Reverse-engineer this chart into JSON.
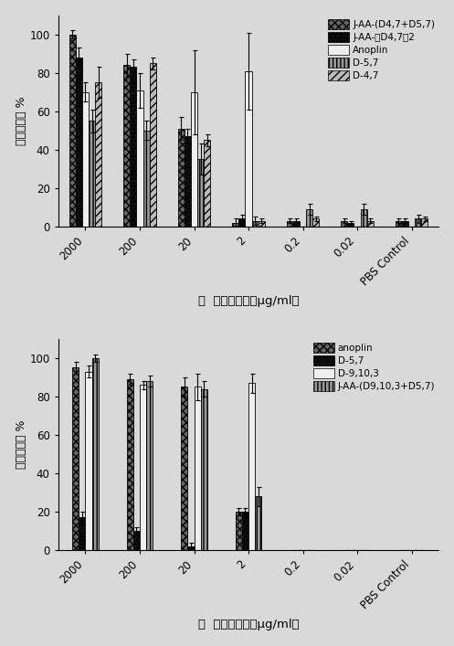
{
  "chart1": {
    "categories": [
      "2000",
      "200",
      "20",
      "2",
      "0.2",
      "0.02",
      "PBS Control"
    ],
    "series": [
      {
        "label": "J-AA-(D4,7+D5,7)",
        "values": [
          100,
          84,
          51,
          2,
          3,
          3,
          3
        ],
        "errors": [
          2,
          6,
          6,
          2,
          1,
          1,
          1
        ],
        "hatch": "xxxx",
        "facecolor": "#666666",
        "edgecolor": "black"
      },
      {
        "label": "J-AA-（D4,7）2",
        "values": [
          88,
          83,
          47,
          4,
          3,
          2,
          3
        ],
        "errors": [
          5,
          4,
          4,
          2,
          1,
          1,
          1
        ],
        "hatch": "****",
        "facecolor": "#222222",
        "edgecolor": "black"
      },
      {
        "label": "Anoplin",
        "values": [
          70,
          71,
          70,
          81,
          0,
          0,
          0
        ],
        "errors": [
          5,
          9,
          22,
          20,
          0,
          0,
          0
        ],
        "hatch": "",
        "facecolor": "#eeeeee",
        "edgecolor": "black"
      },
      {
        "label": "D-5,7",
        "values": [
          55,
          50,
          35,
          3,
          9,
          9,
          4
        ],
        "errors": [
          6,
          5,
          8,
          2,
          3,
          3,
          2
        ],
        "hatch": "||||",
        "facecolor": "#999999",
        "edgecolor": "black"
      },
      {
        "label": "D-4,7",
        "values": [
          75,
          85,
          45,
          3,
          4,
          3,
          4
        ],
        "errors": [
          8,
          3,
          3,
          1,
          1,
          1,
          1
        ],
        "hatch": "////",
        "facecolor": "#bbbbbb",
        "edgecolor": "black"
      }
    ],
    "ylabel": "细菌存活率 %",
    "xlabel": "廃  蛋白酶浓度（μg/ml）",
    "ylim": [
      0,
      110
    ],
    "yticks": [
      0,
      20,
      40,
      60,
      80,
      100
    ]
  },
  "chart2": {
    "categories": [
      "2000",
      "200",
      "20",
      "2",
      "0.2",
      "0.02",
      "PBS Control"
    ],
    "series": [
      {
        "label": "anoplin",
        "values": [
          95,
          89,
          85,
          20,
          0,
          0,
          0
        ],
        "errors": [
          3,
          3,
          5,
          2,
          0,
          0,
          0
        ],
        "hatch": "xxxx",
        "facecolor": "#666666",
        "edgecolor": "black"
      },
      {
        "label": "D-5,7",
        "values": [
          17,
          10,
          2,
          20,
          0,
          0,
          0
        ],
        "errors": [
          3,
          2,
          2,
          2,
          0,
          0,
          0
        ],
        "hatch": "****",
        "facecolor": "#222222",
        "edgecolor": "black"
      },
      {
        "label": "D-9,10,3",
        "values": [
          93,
          86,
          85,
          87,
          0,
          0,
          0
        ],
        "errors": [
          3,
          2,
          7,
          5,
          0,
          0,
          0
        ],
        "hatch": "",
        "facecolor": "#eeeeee",
        "edgecolor": "black"
      },
      {
        "label": "J-AA-(D9,10,3+D5,7)",
        "values": [
          100,
          88,
          84,
          28,
          0,
          0,
          0
        ],
        "errors": [
          2,
          3,
          4,
          5,
          0,
          0,
          0
        ],
        "hatch": "||||",
        "facecolor": "#999999",
        "edgecolor": "black"
      }
    ],
    "ylabel": "细菌存活率 %",
    "xlabel": "廃  蛋白酶浓度（μg/ml）",
    "ylim": [
      0,
      110
    ],
    "yticks": [
      0,
      20,
      40,
      60,
      80,
      100
    ]
  },
  "background_color": "#d9d9d9",
  "font_size": 8.5,
  "bar_width": 0.12,
  "legend_fontsize": 7.5
}
